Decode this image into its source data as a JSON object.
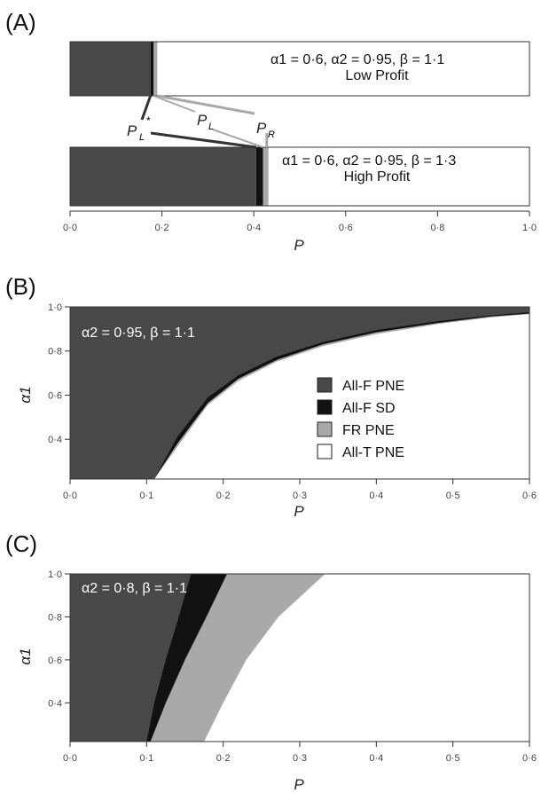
{
  "panels": [
    {
      "label": "(A)"
    },
    {
      "label": "(B)"
    },
    {
      "label": "(C)"
    }
  ],
  "chart_data": [
    {
      "type": "bar",
      "panel": "(A)",
      "xlabel": "P",
      "xlim": [
        0,
        1
      ],
      "xticks": [
        "0·0",
        "0·2",
        "0·4",
        "0·6",
        "0·8",
        "1·0"
      ],
      "colors": {
        "allf_pne": "#484848",
        "allf_sd": "#111111",
        "fr_pne": "#a9a9a9",
        "allt_pne": "#ffffff",
        "pointer_dark": "#333333",
        "pointer_light": "#a8a8a8"
      },
      "bars": [
        {
          "annotation_line1": "α1 = 0·6, α2 = 0·95, β = 1·1",
          "annotation_line2": "Low Profit",
          "segments": {
            "allf_pne": [
              0,
              0.175
            ],
            "allf_sd": [
              0.175,
              0.182
            ],
            "fr_pne": [
              0.182,
              0.19
            ],
            "allt_pne": [
              0.19,
              1.0
            ]
          }
        },
        {
          "annotation_line1": "α1 = 0·6, α2 = 0·95, β = 1·3",
          "annotation_line2": "High Profit",
          "segments": {
            "allf_pne": [
              0,
              0.405
            ],
            "allf_sd": [
              0.405,
              0.42
            ],
            "fr_pne": [
              0.42,
              0.432
            ],
            "allt_pne": [
              0.432,
              1.0
            ]
          }
        }
      ],
      "pointer_labels": {
        "p_l_star": "P",
        "p_l_star_sub": "L",
        "p_l_star_sup": "*",
        "p_l": "P",
        "p_l_sub": "L",
        "p_r": "P",
        "p_r_sub": "R"
      }
    },
    {
      "type": "area",
      "panel": "(B)",
      "annotation": "α2 = 0·95, β = 1·1",
      "xlabel": "P",
      "ylabel": "α1",
      "xlim": [
        0,
        0.6
      ],
      "ylim": [
        0.22,
        1.0
      ],
      "xticks": [
        "0·0",
        "0·1",
        "0·2",
        "0·3",
        "0·4",
        "0·5",
        "0·6"
      ],
      "yticks": [
        "0·4",
        "0·6",
        "0·8",
        "1·0"
      ],
      "boundary_x": [
        0.0,
        0.11,
        0.14,
        0.18,
        0.22,
        0.27,
        0.33,
        0.4,
        0.48,
        0.55,
        0.6
      ],
      "boundaries": {
        "allf_pne_upper": [
          0.22,
          0.22,
          0.41,
          0.59,
          0.69,
          0.775,
          0.84,
          0.895,
          0.935,
          0.962,
          0.976
        ],
        "allf_sd_upper": [
          0.22,
          0.22,
          0.38,
          0.565,
          0.675,
          0.76,
          0.83,
          0.885,
          0.927,
          0.957,
          0.97
        ],
        "fr_pne_upper": [
          0.22,
          0.22,
          0.365,
          0.555,
          0.665,
          0.752,
          0.822,
          0.877,
          0.922,
          0.953,
          0.967
        ]
      },
      "legend": [
        {
          "key": "allf_pne",
          "label": "All-F PNE",
          "color": "#484848"
        },
        {
          "key": "allf_sd",
          "label": "All-F SD",
          "color": "#111111"
        },
        {
          "key": "fr_pne",
          "label": "FR PNE",
          "color": "#a9a9a9"
        },
        {
          "key": "allt_pne",
          "label": "All-T PNE",
          "color": "#ffffff"
        }
      ],
      "legend_position": "center-right"
    },
    {
      "type": "area",
      "panel": "(C)",
      "annotation": "α2 = 0·8, β = 1·1",
      "xlabel": "P",
      "ylabel": "α1",
      "xlim": [
        0,
        0.6
      ],
      "ylim": [
        0.22,
        1.0
      ],
      "xticks": [
        "0·0",
        "0·1",
        "0·2",
        "0·3",
        "0·4",
        "0·5",
        "0·6"
      ],
      "yticks": [
        "0·4",
        "0·6",
        "0·8",
        "1·0"
      ],
      "boundaries": {
        "allf_pne_right": [
          [
            0.1,
            0.22
          ],
          [
            0.11,
            0.4
          ],
          [
            0.125,
            0.6
          ],
          [
            0.142,
            0.8
          ],
          [
            0.158,
            1.0
          ]
        ],
        "allf_sd_right": [
          [
            0.105,
            0.22
          ],
          [
            0.125,
            0.4
          ],
          [
            0.15,
            0.6
          ],
          [
            0.178,
            0.8
          ],
          [
            0.205,
            1.0
          ]
        ],
        "fr_pne_right": [
          [
            0.175,
            0.22
          ],
          [
            0.2,
            0.4
          ],
          [
            0.23,
            0.6
          ],
          [
            0.272,
            0.8
          ],
          [
            0.333,
            1.0
          ]
        ]
      },
      "legend": []
    }
  ]
}
